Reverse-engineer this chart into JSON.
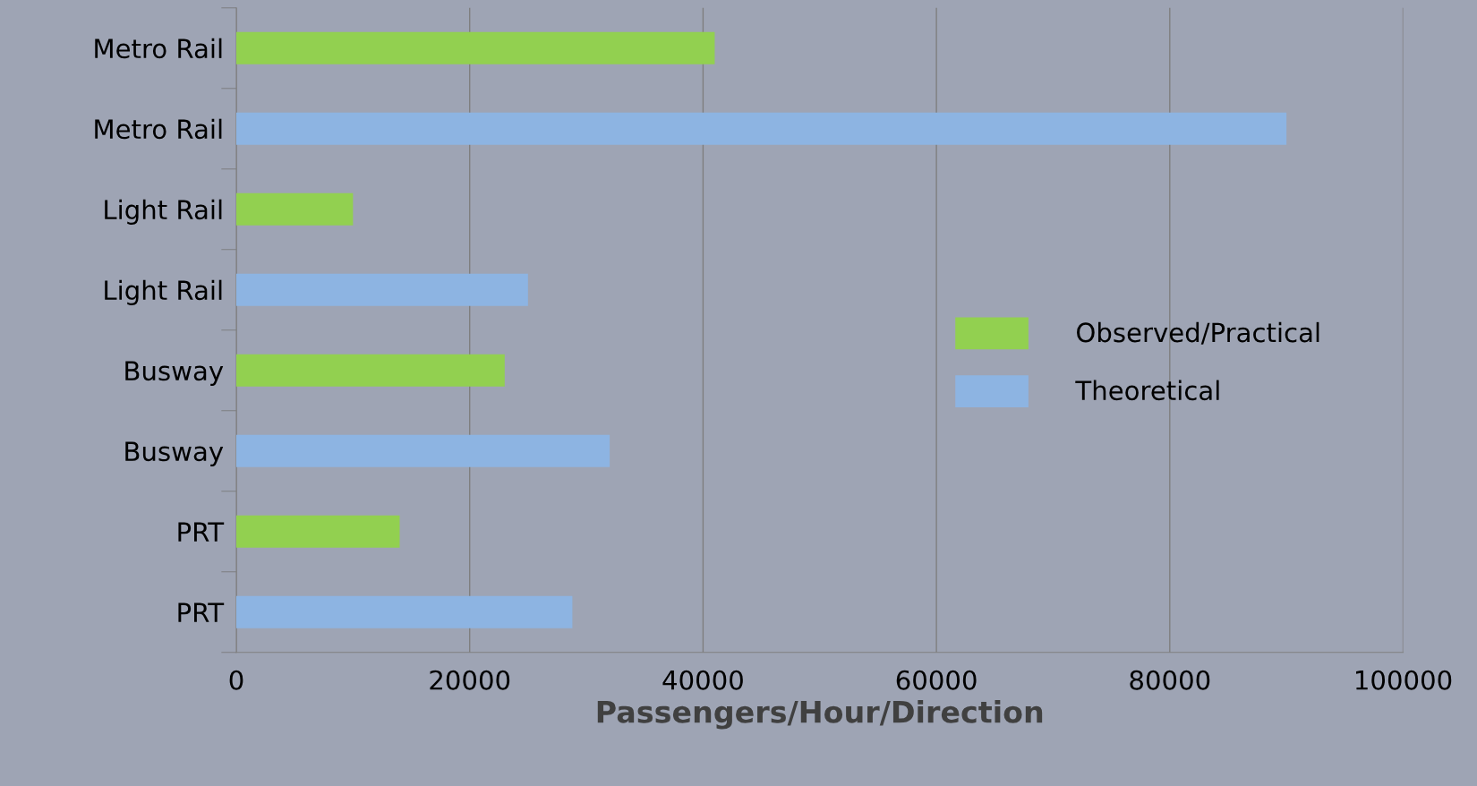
{
  "chart_data": {
    "type": "bar",
    "orientation": "horizontal",
    "xlabel": "Passengers/Hour/Direction",
    "categories": [
      "Metro Rail",
      "Metro Rail",
      "Light Rail",
      "Light Rail",
      "Busway",
      "Busway",
      "PRT",
      "PRT"
    ],
    "series": [
      {
        "name": "Observed/Practical",
        "color": "#92d050",
        "values": [
          41000,
          null,
          10000,
          null,
          23000,
          null,
          14000,
          null
        ]
      },
      {
        "name": "Theoretical",
        "color": "#8db4e2",
        "values": [
          null,
          90000,
          null,
          25000,
          null,
          32000,
          null,
          28800
        ]
      }
    ],
    "xlim": [
      0,
      100000
    ],
    "xticks": [
      0,
      20000,
      40000,
      60000,
      80000,
      100000
    ],
    "grid": "x",
    "legend": "right"
  }
}
